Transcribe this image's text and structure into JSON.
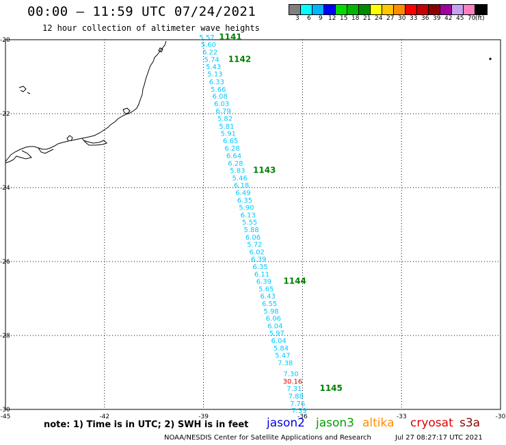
{
  "header": {
    "title": "00:00 – 11:59 UTC 07/24/2021",
    "subtitle": "12 hour collection of altimeter wave heights"
  },
  "legend": {
    "colors": [
      "#808080",
      "#00ffff",
      "#00b4ff",
      "#0000ff",
      "#00dc00",
      "#00b400",
      "#008c00",
      "#ffff00",
      "#ffc800",
      "#ff8c00",
      "#ff0000",
      "#c80000",
      "#8c0000",
      "#a000a0",
      "#c8a0f0",
      "#ff80c0",
      "#000000"
    ],
    "labels": [
      "3",
      "6",
      "9",
      "12",
      "15",
      "18",
      "21",
      "24",
      "27",
      "30",
      "33",
      "36",
      "39",
      "42",
      "45",
      "70",
      "(ft)"
    ]
  },
  "map": {
    "y_ticks": [
      "-20",
      "-22",
      "-24",
      "-26",
      "-28",
      "-30"
    ],
    "x_ticks": [
      "-45",
      "-42",
      "-39",
      "-36",
      "-33",
      "-30"
    ],
    "track_color": "#00c8ff",
    "outlier_color": "#e00000",
    "pass_color": "#008000",
    "coastline_color": "#000000"
  },
  "wave_readings": [
    {
      "value": "5.57",
      "lon": -38.9,
      "lat": -19.93
    },
    {
      "value": "5.60",
      "lon": -38.85,
      "lat": -20.12
    },
    {
      "value": "6.22",
      "lon": -38.8,
      "lat": -20.32
    },
    {
      "value": "5.74",
      "lon": -38.75,
      "lat": -20.53
    },
    {
      "value": "5.43",
      "lon": -38.7,
      "lat": -20.72
    },
    {
      "value": "5.13",
      "lon": -38.65,
      "lat": -20.92
    },
    {
      "value": "6.33",
      "lon": -38.6,
      "lat": -21.13
    },
    {
      "value": "5.66",
      "lon": -38.55,
      "lat": -21.33
    },
    {
      "value": "6.08",
      "lon": -38.5,
      "lat": -21.52
    },
    {
      "value": "6.03",
      "lon": -38.45,
      "lat": -21.72
    },
    {
      "value": "6.79",
      "lon": -38.4,
      "lat": -21.92
    },
    {
      "value": "5.82",
      "lon": -38.35,
      "lat": -22.12
    },
    {
      "value": "5.81",
      "lon": -38.3,
      "lat": -22.33
    },
    {
      "value": "5.91",
      "lon": -38.25,
      "lat": -22.53
    },
    {
      "value": "6.65",
      "lon": -38.18,
      "lat": -22.72
    },
    {
      "value": "6.28",
      "lon": -38.13,
      "lat": -22.93
    },
    {
      "value": "6.64",
      "lon": -38.08,
      "lat": -23.13
    },
    {
      "value": "6.28",
      "lon": -38.03,
      "lat": -23.33
    },
    {
      "value": "5.83",
      "lon": -37.97,
      "lat": -23.53
    },
    {
      "value": "5.46",
      "lon": -37.9,
      "lat": -23.73
    },
    {
      "value": "6.18",
      "lon": -37.85,
      "lat": -23.93
    },
    {
      "value": "6.49",
      "lon": -37.8,
      "lat": -24.13
    },
    {
      "value": "6.35",
      "lon": -37.75,
      "lat": -24.33
    },
    {
      "value": "5.90",
      "lon": -37.7,
      "lat": -24.53
    },
    {
      "value": "6.13",
      "lon": -37.65,
      "lat": -24.73
    },
    {
      "value": "5.55",
      "lon": -37.6,
      "lat": -24.93
    },
    {
      "value": "5.88",
      "lon": -37.55,
      "lat": -25.13
    },
    {
      "value": "6.06",
      "lon": -37.5,
      "lat": -25.33
    },
    {
      "value": "5.72",
      "lon": -37.45,
      "lat": -25.53
    },
    {
      "value": "6.02",
      "lon": -37.38,
      "lat": -25.73
    },
    {
      "value": "6.39",
      "lon": -37.33,
      "lat": -25.93
    },
    {
      "value": "6.35",
      "lon": -37.28,
      "lat": -26.13
    },
    {
      "value": "6.11",
      "lon": -37.23,
      "lat": -26.33
    },
    {
      "value": "6.39",
      "lon": -37.17,
      "lat": -26.53
    },
    {
      "value": "5.65",
      "lon": -37.1,
      "lat": -26.73
    },
    {
      "value": "6.43",
      "lon": -37.05,
      "lat": -26.93
    },
    {
      "value": "6.55",
      "lon": -37.0,
      "lat": -27.13
    },
    {
      "value": "5.98",
      "lon": -36.95,
      "lat": -27.33
    },
    {
      "value": "6.06",
      "lon": -36.88,
      "lat": -27.53
    },
    {
      "value": "6.04",
      "lon": -36.83,
      "lat": -27.73
    },
    {
      "value": "5.97",
      "lon": -36.78,
      "lat": -27.93
    },
    {
      "value": "6.04",
      "lon": -36.72,
      "lat": -28.13
    },
    {
      "value": "5.84",
      "lon": -36.65,
      "lat": -28.33
    },
    {
      "value": "5.47",
      "lon": -36.6,
      "lat": -28.53
    },
    {
      "value": "7.38",
      "lon": -36.52,
      "lat": -28.73
    },
    {
      "value": "7.30",
      "lon": -36.35,
      "lat": -29.03
    },
    {
      "value": "30.16",
      "lon": -36.3,
      "lat": -29.23,
      "outlier": true
    },
    {
      "value": "7.31",
      "lon": -36.25,
      "lat": -29.43
    },
    {
      "value": "7.88",
      "lon": -36.2,
      "lat": -29.63
    },
    {
      "value": "7.76",
      "lon": -36.15,
      "lat": -29.83
    },
    {
      "value": "7.39",
      "lon": -36.1,
      "lat": -30.02
    }
  ],
  "pass_labels": [
    {
      "text": "1141",
      "lon": -38.53,
      "lat": -19.93
    },
    {
      "text": "1142",
      "lon": -38.25,
      "lat": -20.53
    },
    {
      "text": "1143",
      "lon": -37.5,
      "lat": -23.53
    },
    {
      "text": "1144",
      "lon": -36.58,
      "lat": -26.53
    },
    {
      "text": "1145",
      "lon": -35.48,
      "lat": -29.43
    }
  ],
  "footer": {
    "note": "note: 1) Time is in UTC; 2) SWH is in feet",
    "satellites": [
      {
        "name": "jason2",
        "color": "#0000e0"
      },
      {
        "name": "jason3",
        "color": "#00a000"
      },
      {
        "name": "altika",
        "color": "#ff8c00"
      },
      {
        "name": "cryosat",
        "color": "#e00000"
      },
      {
        "name": "s3a",
        "color": "#8b0000"
      }
    ],
    "credit": "NOAA/NESDIS Center for Satellite Applications and Research",
    "timestamp": "Jul 27 08:27:17 UTC 2021"
  }
}
